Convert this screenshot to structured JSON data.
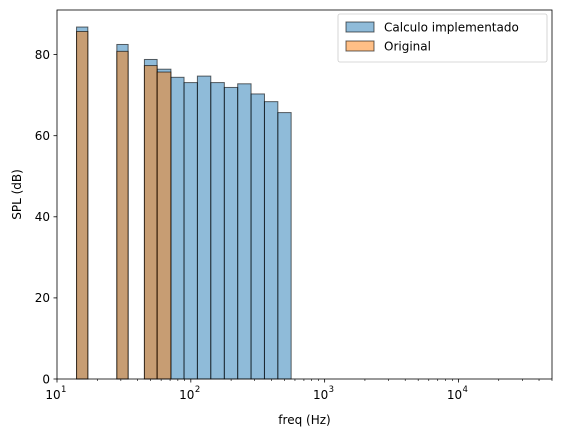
{
  "chart_data": {
    "type": "bar",
    "xscale": "log",
    "xlabel": "freq (Hz)",
    "ylabel": "SPL (dB)",
    "xlim": [
      10,
      50000
    ],
    "ylim": [
      0,
      91
    ],
    "xticks": [
      {
        "value": 10,
        "base": "10",
        "exp": "1"
      },
      {
        "value": 100,
        "base": "10",
        "exp": "2"
      },
      {
        "value": 1000,
        "base": "10",
        "exp": "3"
      },
      {
        "value": 10000,
        "base": "10",
        "exp": "4"
      }
    ],
    "yticks": [
      0,
      20,
      40,
      60,
      80
    ],
    "legend": {
      "location": "upper right"
    },
    "series": [
      {
        "name": "Calculo implementado",
        "color": "#1f77b4",
        "bars": [
          {
            "x0": 14,
            "x1": 17,
            "value": 86.8
          },
          {
            "x0": 28,
            "x1": 34,
            "value": 82.5
          },
          {
            "x0": 45,
            "x1": 56,
            "value": 78.8
          },
          {
            "x0": 56,
            "x1": 71,
            "value": 76.4
          },
          {
            "x0": 71,
            "x1": 89,
            "value": 74.4
          },
          {
            "x0": 89,
            "x1": 112,
            "value": 73.1
          },
          {
            "x0": 112,
            "x1": 141,
            "value": 74.7
          },
          {
            "x0": 141,
            "x1": 178,
            "value": 73.1
          },
          {
            "x0": 178,
            "x1": 224,
            "value": 71.9
          },
          {
            "x0": 224,
            "x1": 282,
            "value": 72.8
          },
          {
            "x0": 282,
            "x1": 355,
            "value": 70.3
          },
          {
            "x0": 355,
            "x1": 447,
            "value": 68.4
          },
          {
            "x0": 447,
            "x1": 562,
            "value": 65.7
          }
        ]
      },
      {
        "name": "Original",
        "color": "#ff7f0e",
        "bars": [
          {
            "x0": 14,
            "x1": 17,
            "value": 85.7
          },
          {
            "x0": 28,
            "x1": 34,
            "value": 80.8
          },
          {
            "x0": 45,
            "x1": 56,
            "value": 77.3
          },
          {
            "x0": 56,
            "x1": 71,
            "value": 75.7
          }
        ]
      }
    ]
  }
}
